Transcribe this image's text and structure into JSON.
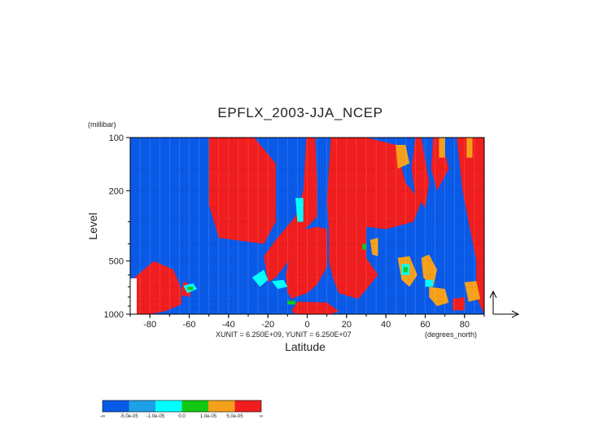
{
  "colors": {
    "blue": "#0a5ae8",
    "lightblue": "#1ea0e8",
    "cyan": "#00ffff",
    "green": "#12c812",
    "orange": "#f5a01a",
    "red": "#f01e1e"
  },
  "chart_data": {
    "type": "heatmap",
    "title": "EPFLX_2003-JJA_NCEP",
    "xlabel": "Latitude",
    "ylabel": "Level",
    "y_units": "(millibar)",
    "x_units": "(degrees_north)",
    "unit_note": "XUNIT = 6.250E+09, YUNIT = 6.250E+07",
    "xlim": [
      -90,
      90
    ],
    "ylim": [
      1000,
      100
    ],
    "y_scale": "log",
    "x_ticks": [
      -80,
      -60,
      -40,
      -20,
      0,
      20,
      40,
      60,
      80
    ],
    "y_ticks": [
      100,
      200,
      500,
      1000
    ],
    "colorbar": {
      "levels": [
        "-∞",
        "-5.0e-05",
        "-1.0e-05",
        "0.0",
        "1.0e-05",
        "5.0e-05",
        "∞"
      ],
      "colors": [
        "#0a5ae8",
        "#1ea0e8",
        "#00ffff",
        "#12c812",
        "#f5a01a",
        "#f01e1e"
      ]
    },
    "regions": [
      {
        "color": "red",
        "points": [
          [
            -50,
            100
          ],
          [
            -27,
            100
          ],
          [
            -16,
            140
          ],
          [
            -16,
            300
          ],
          [
            -22,
            400
          ],
          [
            -45,
            370
          ],
          [
            -50,
            240
          ]
        ]
      },
      {
        "color": "red",
        "points": [
          [
            -0.5,
            100
          ],
          [
            4,
            100
          ],
          [
            5,
            180
          ],
          [
            5,
            280
          ],
          [
            -1,
            330
          ],
          [
            -8,
            480
          ],
          [
            -16,
            620
          ],
          [
            -20,
            660
          ],
          [
            -22,
            470
          ],
          [
            -16,
            380
          ],
          [
            -6,
            280
          ],
          [
            -2,
            200
          ]
        ]
      },
      {
        "color": "red",
        "points": [
          [
            12,
            100
          ],
          [
            30,
            100
          ],
          [
            45,
            110
          ],
          [
            50,
            180
          ],
          [
            58,
            230
          ],
          [
            54,
            300
          ],
          [
            40,
            330
          ],
          [
            30,
            320
          ],
          [
            30,
            480
          ],
          [
            36,
            600
          ],
          [
            26,
            820
          ],
          [
            16,
            760
          ],
          [
            13,
            620
          ],
          [
            11,
            500
          ],
          [
            11,
            330
          ],
          [
            10,
            230
          ],
          [
            11,
            150
          ]
        ]
      },
      {
        "color": "red",
        "points": [
          [
            -5,
            340
          ],
          [
            5,
            320
          ],
          [
            10,
            330
          ],
          [
            10,
            540
          ],
          [
            5,
            680
          ],
          [
            0,
            760
          ],
          [
            -6,
            800
          ],
          [
            -8,
            820
          ],
          [
            -10,
            750
          ],
          [
            -11,
            600
          ],
          [
            -9,
            480
          ]
        ]
      },
      {
        "color": "red",
        "points": [
          [
            -5,
            850
          ],
          [
            10,
            860
          ],
          [
            16,
            960
          ],
          [
            12,
            1000
          ],
          [
            -6,
            1000
          ],
          [
            -8,
            950
          ]
        ]
      },
      {
        "color": "red",
        "points": [
          [
            -90,
            650
          ],
          [
            -78,
            500
          ],
          [
            -68,
            560
          ],
          [
            -64,
            720
          ],
          [
            -64,
            880
          ],
          [
            -72,
            960
          ],
          [
            -80,
            1000
          ],
          [
            -90,
            1000
          ]
        ]
      },
      {
        "color": "red",
        "points": [
          [
            -63,
            650
          ],
          [
            -58,
            700
          ],
          [
            -60,
            800
          ],
          [
            -64,
            780
          ]
        ]
      },
      {
        "color": "red",
        "points": [
          [
            55,
            100
          ],
          [
            58,
            100
          ],
          [
            62,
            180
          ],
          [
            60,
            250
          ],
          [
            55,
            210
          ],
          [
            53,
            150
          ]
        ]
      },
      {
        "color": "red",
        "points": [
          [
            64,
            100
          ],
          [
            68,
            100
          ],
          [
            72,
            150
          ],
          [
            66,
            200
          ],
          [
            63,
            150
          ]
        ]
      },
      {
        "color": "red",
        "points": [
          [
            76,
            100
          ],
          [
            90,
            100
          ],
          [
            90,
            1000
          ],
          [
            86,
            800
          ],
          [
            86,
            500
          ],
          [
            82,
            300
          ],
          [
            79,
            200
          ]
        ]
      },
      {
        "color": "red",
        "points": [
          [
            74,
            820
          ],
          [
            80,
            800
          ],
          [
            80,
            950
          ],
          [
            74,
            950
          ]
        ]
      },
      {
        "color": "orange",
        "points": [
          [
            46,
            480
          ],
          [
            52,
            470
          ],
          [
            56,
            600
          ],
          [
            52,
            700
          ],
          [
            48,
            640
          ]
        ]
      },
      {
        "color": "orange",
        "points": [
          [
            58,
            480
          ],
          [
            62,
            460
          ],
          [
            66,
            560
          ],
          [
            64,
            700
          ],
          [
            59,
            620
          ]
        ]
      },
      {
        "color": "orange",
        "points": [
          [
            62,
            700
          ],
          [
            70,
            720
          ],
          [
            72,
            860
          ],
          [
            66,
            900
          ],
          [
            62,
            800
          ]
        ]
      },
      {
        "color": "orange",
        "points": [
          [
            80,
            660
          ],
          [
            86,
            650
          ],
          [
            88,
            820
          ],
          [
            82,
            850
          ]
        ]
      },
      {
        "color": "orange",
        "points": [
          [
            32,
            380
          ],
          [
            36,
            370
          ],
          [
            36,
            470
          ],
          [
            33,
            460
          ]
        ]
      },
      {
        "color": "orange",
        "points": [
          [
            45,
            110
          ],
          [
            50,
            110
          ],
          [
            52,
            140
          ],
          [
            46,
            150
          ]
        ]
      },
      {
        "color": "orange",
        "points": [
          [
            67,
            100
          ],
          [
            70,
            100
          ],
          [
            70,
            130
          ],
          [
            67,
            130
          ]
        ]
      },
      {
        "color": "orange",
        "points": [
          [
            81,
            100
          ],
          [
            84,
            100
          ],
          [
            84,
            130
          ],
          [
            81,
            130
          ]
        ]
      },
      {
        "color": "cyan",
        "points": [
          [
            -63,
            690
          ],
          [
            -58,
            670
          ],
          [
            -56,
            720
          ],
          [
            -61,
            760
          ]
        ]
      },
      {
        "color": "cyan",
        "points": [
          [
            -18,
            650
          ],
          [
            -12,
            640
          ],
          [
            -10,
            700
          ],
          [
            -15,
            720
          ]
        ]
      },
      {
        "color": "cyan",
        "points": [
          [
            -6,
            220
          ],
          [
            -2,
            220
          ],
          [
            -2,
            300
          ],
          [
            -5,
            300
          ]
        ]
      },
      {
        "color": "cyan",
        "points": [
          [
            -28,
            620
          ],
          [
            -22,
            560
          ],
          [
            -20,
            640
          ],
          [
            -24,
            700
          ]
        ]
      },
      {
        "color": "cyan",
        "points": [
          [
            48,
            520
          ],
          [
            52,
            520
          ],
          [
            52,
            600
          ],
          [
            48,
            600
          ]
        ]
      },
      {
        "color": "cyan",
        "points": [
          [
            60,
            640
          ],
          [
            64,
            640
          ],
          [
            64,
            700
          ],
          [
            60,
            700
          ]
        ]
      },
      {
        "color": "green",
        "points": [
          [
            49,
            540
          ],
          [
            51,
            540
          ],
          [
            51,
            580
          ],
          [
            49,
            580
          ]
        ]
      },
      {
        "color": "green",
        "points": [
          [
            -61,
            700
          ],
          [
            -58,
            700
          ],
          [
            -58,
            730
          ],
          [
            -61,
            730
          ]
        ]
      },
      {
        "color": "green",
        "points": [
          [
            -10,
            840
          ],
          [
            -6,
            840
          ],
          [
            -6,
            880
          ],
          [
            -10,
            880
          ]
        ]
      },
      {
        "color": "green",
        "points": [
          [
            28,
            400
          ],
          [
            30,
            400
          ],
          [
            30,
            430
          ],
          [
            28,
            430
          ]
        ]
      }
    ]
  }
}
